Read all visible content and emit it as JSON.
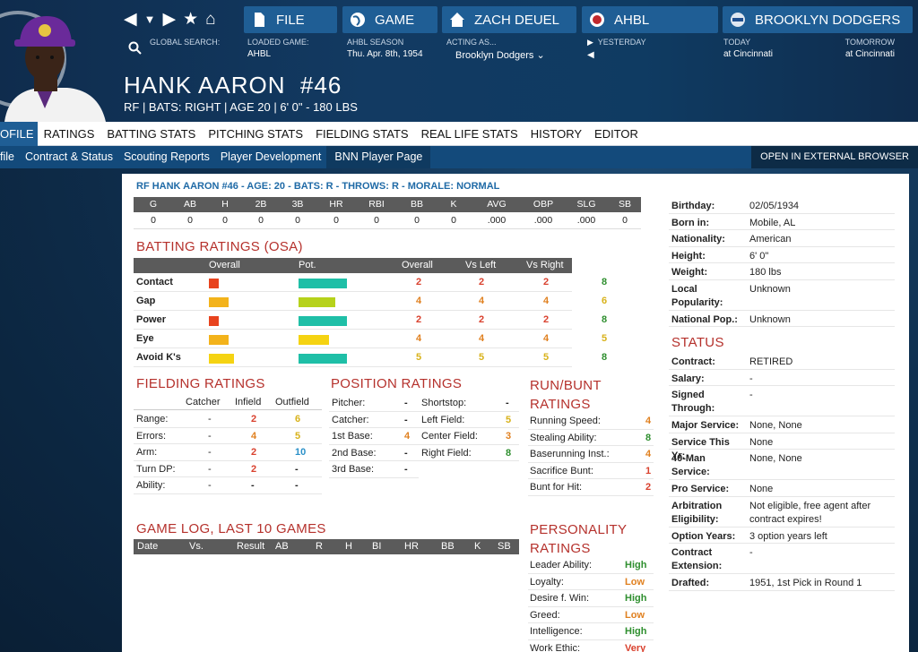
{
  "nav": {
    "icons": [
      "back-icon",
      "dropdown-icon",
      "forward-icon",
      "star-icon",
      "home-icon"
    ]
  },
  "top": {
    "file": "FILE",
    "game": "GAME",
    "manager": "ZACH DEUEL",
    "league": "AHBL",
    "team": "BROOKLYN DODGERS"
  },
  "info": {
    "search_label": "GLOBAL SEARCH:",
    "loaded_label": "LOADED GAME:",
    "loaded_value": "AHBL",
    "season_label": "AHBL SEASON",
    "season_value": "Thu. Apr. 8th, 1954",
    "acting_label": "ACTING AS...",
    "acting_value": "Brooklyn Dodgers",
    "yesterday": "YESTERDAY",
    "today_label": "TODAY",
    "today_value": "at Cincinnati",
    "tomorrow_label": "TOMORROW",
    "tomorrow_value": "at Cincinnati"
  },
  "player": {
    "name": "HANK AARON  #46",
    "sub": "RF | BATS: RIGHT | AGE 20 | 6' 0\" - 180 LBS"
  },
  "tabs": [
    "OFILE",
    "RATINGS",
    "BATTING STATS",
    "PITCHING STATS",
    "FIELDING STATS",
    "REAL LIFE STATS",
    "HISTORY",
    "EDITOR"
  ],
  "subtabs": [
    "file",
    "Contract & Status",
    "Scouting Reports",
    "Player Development",
    "BNN Player Page"
  ],
  "external": "OPEN IN EXTERNAL BROWSER",
  "summary": "RF HANK AARON #46 - AGE: 20 - BATS: R - THROWS: R - MORALE: NORMAL",
  "stats": {
    "headers": [
      "G",
      "AB",
      "H",
      "2B",
      "3B",
      "HR",
      "RBI",
      "BB",
      "K",
      "AVG",
      "OBP",
      "SLG",
      "SB"
    ],
    "values": [
      "0",
      "0",
      "0",
      "0",
      "0",
      "0",
      "0",
      "0",
      "0",
      ".000",
      ".000",
      ".000",
      "0"
    ]
  },
  "batting": {
    "title": "BATTING RATINGS (OSA)",
    "headers": [
      "Overall",
      "Pot.",
      "Overall",
      "Vs Left",
      "Vs Right",
      "Pot."
    ],
    "rows": [
      {
        "name": "Contact",
        "ov_bar": 0.2,
        "ov_color": "#e8431e",
        "pot_bar": 0.8,
        "pot_color": "#1fbfa7",
        "overall": "2",
        "vsl": "2",
        "vsr": "2",
        "pot": "8"
      },
      {
        "name": "Gap",
        "ov_bar": 0.4,
        "ov_color": "#f3b31b",
        "pot_bar": 0.6,
        "pot_color": "#b6d21b",
        "overall": "4",
        "vsl": "4",
        "vsr": "4",
        "pot": "6"
      },
      {
        "name": "Power",
        "ov_bar": 0.2,
        "ov_color": "#e8431e",
        "pot_bar": 0.8,
        "pot_color": "#1fbfa7",
        "overall": "2",
        "vsl": "2",
        "vsr": "2",
        "pot": "8"
      },
      {
        "name": "Eye",
        "ov_bar": 0.4,
        "ov_color": "#f3b31b",
        "pot_bar": 0.5,
        "pot_color": "#f5d312",
        "overall": "4",
        "vsl": "4",
        "vsr": "4",
        "pot": "5"
      },
      {
        "name": "Avoid K's",
        "ov_bar": 0.5,
        "ov_color": "#f5d312",
        "pot_bar": 0.8,
        "pot_color": "#1fbfa7",
        "overall": "5",
        "vsl": "5",
        "vsr": "5",
        "pot": "8"
      }
    ]
  },
  "fielding": {
    "title": "FIELDING RATINGS",
    "headers": [
      "Catcher",
      "Infield",
      "Outfield"
    ],
    "rows": [
      {
        "name": "Range:",
        "c": "-",
        "i": "2",
        "o": "6",
        "ic": "red",
        "oc": "yellow"
      },
      {
        "name": "Errors:",
        "c": "-",
        "i": "4",
        "o": "5",
        "ic": "orange",
        "oc": "yellow"
      },
      {
        "name": "Arm:",
        "c": "-",
        "i": "2",
        "o": "10",
        "ic": "red",
        "oc": "blue"
      },
      {
        "name": "Turn DP:",
        "c": "-",
        "i": "2",
        "o": "-",
        "ic": "red",
        "oc": ""
      },
      {
        "name": "Ability:",
        "c": "-",
        "i": "-",
        "o": "-",
        "ic": "",
        "oc": ""
      }
    ]
  },
  "position": {
    "title": "POSITION RATINGS",
    "left": [
      {
        "name": "Pitcher:",
        "v": "-",
        "c": ""
      },
      {
        "name": "Catcher:",
        "v": "-",
        "c": ""
      },
      {
        "name": "1st Base:",
        "v": "4",
        "c": "orange"
      },
      {
        "name": "2nd Base:",
        "v": "-",
        "c": ""
      },
      {
        "name": "3rd Base:",
        "v": "-",
        "c": ""
      }
    ],
    "right": [
      {
        "name": "Shortstop:",
        "v": "-",
        "c": ""
      },
      {
        "name": "Left Field:",
        "v": "5",
        "c": "yellow"
      },
      {
        "name": "Center Field:",
        "v": "3",
        "c": "orange"
      },
      {
        "name": "Right Field:",
        "v": "8",
        "c": "green"
      }
    ]
  },
  "runbunt": {
    "title1": "RUN/BUNT",
    "title2": "RATINGS",
    "rows": [
      {
        "name": "Running Speed:",
        "v": "4",
        "c": "orange"
      },
      {
        "name": "Stealing Ability:",
        "v": "8",
        "c": "green"
      },
      {
        "name": "Baserunning Inst.:",
        "v": "4",
        "c": "orange"
      },
      {
        "name": "Sacrifice Bunt:",
        "v": "1",
        "c": "red"
      },
      {
        "name": "Bunt for Hit:",
        "v": "2",
        "c": "red"
      }
    ]
  },
  "gamelog": {
    "title": "GAME LOG, LAST 10 GAMES",
    "headers": [
      "Date",
      "Vs.",
      "Result",
      "AB",
      "R",
      "H",
      "BI",
      "HR",
      "BB",
      "K",
      "SB"
    ]
  },
  "personality": {
    "title1": "PERSONALITY",
    "title2": "RATINGS",
    "rows": [
      {
        "name": "Leader Ability:",
        "v": "High",
        "c": "green"
      },
      {
        "name": "Loyalty:",
        "v": "Low",
        "c": "orange"
      },
      {
        "name": "Desire f. Win:",
        "v": "High",
        "c": "green"
      },
      {
        "name": "Greed:",
        "v": "Low",
        "c": "orange"
      },
      {
        "name": "Intelligence:",
        "v": "High",
        "c": "green"
      },
      {
        "name": "Work Ethic:",
        "v": "Very Low",
        "c": "red"
      }
    ]
  },
  "bio": [
    {
      "k": "Birthday:",
      "v": "02/05/1934"
    },
    {
      "k": "Born in:",
      "v": "Mobile, AL"
    },
    {
      "k": "Nationality:",
      "v": "American"
    },
    {
      "k": "Height:",
      "v": "6' 0\""
    },
    {
      "k": "Weight:",
      "v": "180 lbs"
    },
    {
      "k": "Local Popularity:",
      "v": "Unknown"
    },
    {
      "k": "National Pop.:",
      "v": "Unknown"
    }
  ],
  "status_title": "STATUS",
  "status": [
    {
      "k": "Contract:",
      "v": "RETIRED"
    },
    {
      "k": "Salary:",
      "v": "-"
    },
    {
      "k": "Signed Through:",
      "v": "-"
    },
    {
      "k": "Major Service:",
      "v": "None, None"
    },
    {
      "k": "Service This Yr:",
      "v": "None"
    },
    {
      "k": "40-Man Service:",
      "v": "None, None"
    },
    {
      "k": "Pro Service:",
      "v": "None"
    },
    {
      "k": "Arbitration Eligibility:",
      "v": "Not eligible, free agent after contract expires!"
    },
    {
      "k": "Option Years:",
      "v": "3 option years left"
    },
    {
      "k": "Contract Extension:",
      "v": "-"
    },
    {
      "k": "Drafted:",
      "v": "1951, 1st Pick in Round 1"
    }
  ],
  "colors": {
    "accent": "#1f5e95",
    "section": "#b5312c",
    "header": "#5b5b5b"
  }
}
